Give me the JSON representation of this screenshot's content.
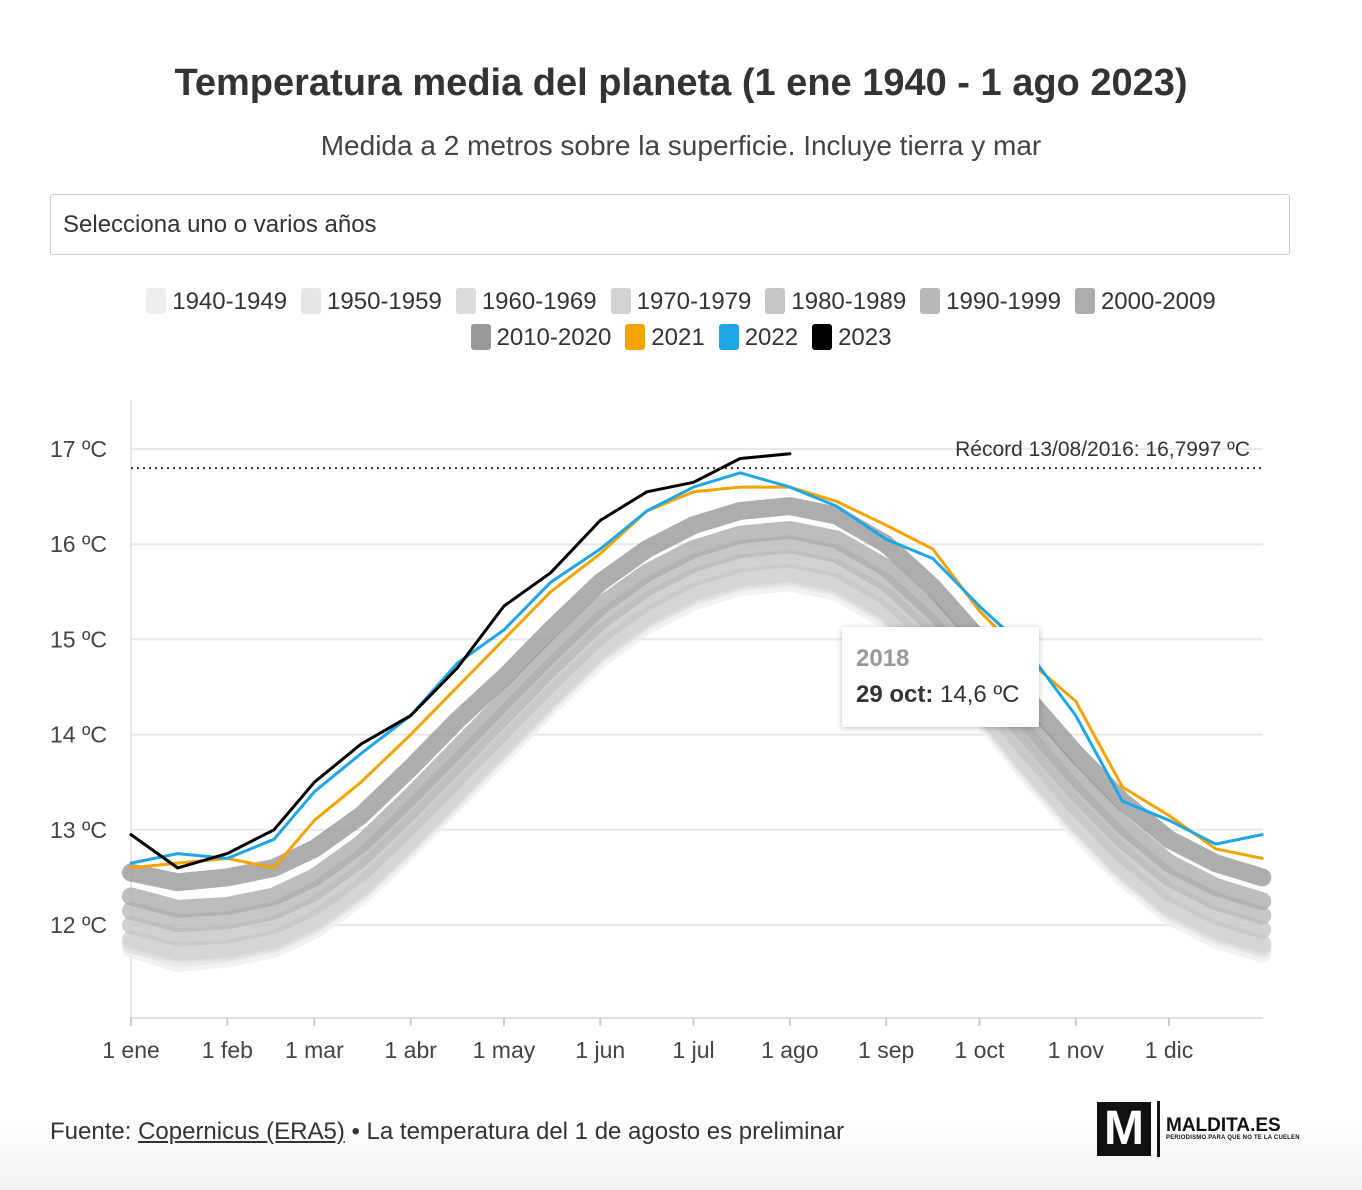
{
  "header": {
    "title": "Temperatura media del planeta (1 ene 1940 - 1 ago 2023)",
    "subtitle": "Medida a 2 metros sobre la superficie. Incluye tierra y mar"
  },
  "selector": {
    "placeholder": "Selecciona uno o varios años"
  },
  "legend": [
    {
      "label": "1940-1949",
      "color": "#efefef"
    },
    {
      "label": "1950-1959",
      "color": "#e6e6e6"
    },
    {
      "label": "1960-1969",
      "color": "#dcdcdc"
    },
    {
      "label": "1970-1979",
      "color": "#d2d2d2"
    },
    {
      "label": "1980-1989",
      "color": "#c6c6c6"
    },
    {
      "label": "1990-1999",
      "color": "#b9b9b9"
    },
    {
      "label": "2000-2009",
      "color": "#acacac"
    },
    {
      "label": "2010-2020",
      "color": "#999999"
    },
    {
      "label": "2021",
      "color": "#f5a300"
    },
    {
      "label": "2022",
      "color": "#1ea6e6"
    },
    {
      "label": "2023",
      "color": "#000000"
    }
  ],
  "chart_data": {
    "type": "line",
    "title": "Temperatura media del planeta (1 ene 1940 - 1 ago 2023)",
    "ylim": [
      11,
      17.5
    ],
    "yticks": [
      12,
      13,
      14,
      15,
      16,
      17
    ],
    "ytick_labels": [
      "12 ºC",
      "13 ºC",
      "14 ºC",
      "15 ºC",
      "16 ºC",
      "17 ºC"
    ],
    "xlim_day_of_year": [
      0,
      364
    ],
    "xticks_day_of_year": [
      0,
      31,
      59,
      90,
      120,
      151,
      181,
      212,
      243,
      273,
      304,
      334
    ],
    "xtick_labels": [
      "1 ene",
      "1 feb",
      "1 mar",
      "1 abr",
      "1 may",
      "1 jun",
      "1 jul",
      "1 ago",
      "1 sep",
      "1 oct",
      "1 nov",
      "1 dic"
    ],
    "grid": "horizontal",
    "x_day_of_year": [
      0,
      15,
      31,
      46,
      59,
      74,
      90,
      105,
      120,
      135,
      151,
      166,
      181,
      196,
      212,
      227,
      243,
      258,
      273,
      288,
      304,
      319,
      334,
      349,
      364
    ],
    "series": [
      {
        "name": "1940-1949",
        "color": "#efefef",
        "values": [
          11.75,
          11.6,
          11.65,
          11.75,
          11.95,
          12.3,
          12.8,
          13.3,
          13.8,
          14.3,
          14.8,
          15.15,
          15.4,
          15.55,
          15.6,
          15.5,
          15.2,
          14.75,
          14.2,
          13.6,
          13.0,
          12.5,
          12.1,
          11.85,
          11.7
        ]
      },
      {
        "name": "1950-1959",
        "color": "#e6e6e6",
        "values": [
          11.8,
          11.65,
          11.7,
          11.8,
          12.0,
          12.35,
          12.85,
          13.35,
          13.85,
          14.35,
          14.85,
          15.2,
          15.45,
          15.6,
          15.65,
          15.55,
          15.25,
          14.8,
          14.25,
          13.65,
          13.05,
          12.55,
          12.15,
          11.9,
          11.75
        ]
      },
      {
        "name": "1960-1969",
        "color": "#dcdcdc",
        "values": [
          11.8,
          11.7,
          11.72,
          11.82,
          12.02,
          12.37,
          12.87,
          13.37,
          13.87,
          14.37,
          14.87,
          15.22,
          15.47,
          15.62,
          15.67,
          15.57,
          15.27,
          14.82,
          14.27,
          13.67,
          13.07,
          12.57,
          12.17,
          11.92,
          11.77
        ]
      },
      {
        "name": "1970-1979",
        "color": "#d2d2d2",
        "values": [
          11.85,
          11.72,
          11.75,
          11.85,
          12.05,
          12.4,
          12.9,
          13.4,
          13.9,
          14.4,
          14.9,
          15.25,
          15.5,
          15.65,
          15.7,
          15.6,
          15.3,
          14.85,
          14.3,
          13.7,
          13.1,
          12.6,
          12.2,
          11.95,
          11.8
        ]
      },
      {
        "name": "1980-1989",
        "color": "#c6c6c6",
        "values": [
          12.0,
          11.87,
          11.9,
          12.0,
          12.2,
          12.55,
          13.05,
          13.55,
          14.05,
          14.55,
          15.05,
          15.4,
          15.65,
          15.8,
          15.85,
          15.75,
          15.45,
          15.0,
          14.45,
          13.85,
          13.25,
          12.75,
          12.35,
          12.1,
          11.95
        ]
      },
      {
        "name": "1990-1999",
        "color": "#b9b9b9",
        "values": [
          12.15,
          12.02,
          12.05,
          12.15,
          12.35,
          12.7,
          13.2,
          13.7,
          14.2,
          14.7,
          15.2,
          15.55,
          15.8,
          15.95,
          16.0,
          15.9,
          15.6,
          15.15,
          14.6,
          14.0,
          13.4,
          12.9,
          12.5,
          12.25,
          12.1
        ]
      },
      {
        "name": "2000-2009",
        "color": "#acacac",
        "values": [
          12.3,
          12.17,
          12.2,
          12.3,
          12.5,
          12.85,
          13.35,
          13.85,
          14.35,
          14.85,
          15.35,
          15.7,
          15.95,
          16.1,
          16.15,
          16.05,
          15.75,
          15.3,
          14.75,
          14.15,
          13.55,
          13.05,
          12.65,
          12.4,
          12.25
        ]
      },
      {
        "name": "2010-2020",
        "color": "#999999",
        "values": [
          12.55,
          12.45,
          12.5,
          12.6,
          12.8,
          13.15,
          13.65,
          14.15,
          14.6,
          15.1,
          15.6,
          15.95,
          16.2,
          16.35,
          16.4,
          16.3,
          16.0,
          15.55,
          15.0,
          14.4,
          13.8,
          13.3,
          12.9,
          12.65,
          12.5
        ]
      },
      {
        "name": "2021",
        "color": "#f5a300",
        "values": [
          12.6,
          12.65,
          12.7,
          12.6,
          13.1,
          13.5,
          14.0,
          14.5,
          15.0,
          15.5,
          15.9,
          16.35,
          16.55,
          16.6,
          16.6,
          16.45,
          16.2,
          15.95,
          15.3,
          14.8,
          14.35,
          13.45,
          13.15,
          12.8,
          12.7
        ]
      },
      {
        "name": "2022",
        "color": "#1ea6e6",
        "values": [
          12.65,
          12.75,
          12.7,
          12.9,
          13.4,
          13.8,
          14.2,
          14.75,
          15.1,
          15.6,
          15.95,
          16.35,
          16.6,
          16.75,
          16.6,
          16.4,
          16.05,
          15.85,
          15.35,
          14.9,
          14.2,
          13.3,
          13.1,
          12.85,
          12.95
        ]
      },
      {
        "name": "2023",
        "color": "#000000",
        "values": [
          12.95,
          12.6,
          12.75,
          13.0,
          13.5,
          13.9,
          14.2,
          14.7,
          15.35,
          15.7,
          16.25,
          16.55,
          16.65,
          16.9,
          16.95,
          null,
          null,
          null,
          null,
          null,
          null,
          null,
          null,
          null,
          null
        ]
      }
    ],
    "reference_line": {
      "value": 16.7997,
      "label": "Récord 13/08/2016: 16,7997 ºC",
      "style": "dotted"
    },
    "tooltip": {
      "year": "2018",
      "date": "29 oct:",
      "value": "14,6 ºC"
    }
  },
  "footer": {
    "source_prefix": "Fuente:",
    "source_link": "Copernicus (ERA5)",
    "note": "• La temperatura del 1 de agosto es preliminar"
  },
  "logo": {
    "name": "MALDITA.ES",
    "tagline": "PERIODISMO PARA QUE NO TE LA CUELEN",
    "mark": "M"
  }
}
